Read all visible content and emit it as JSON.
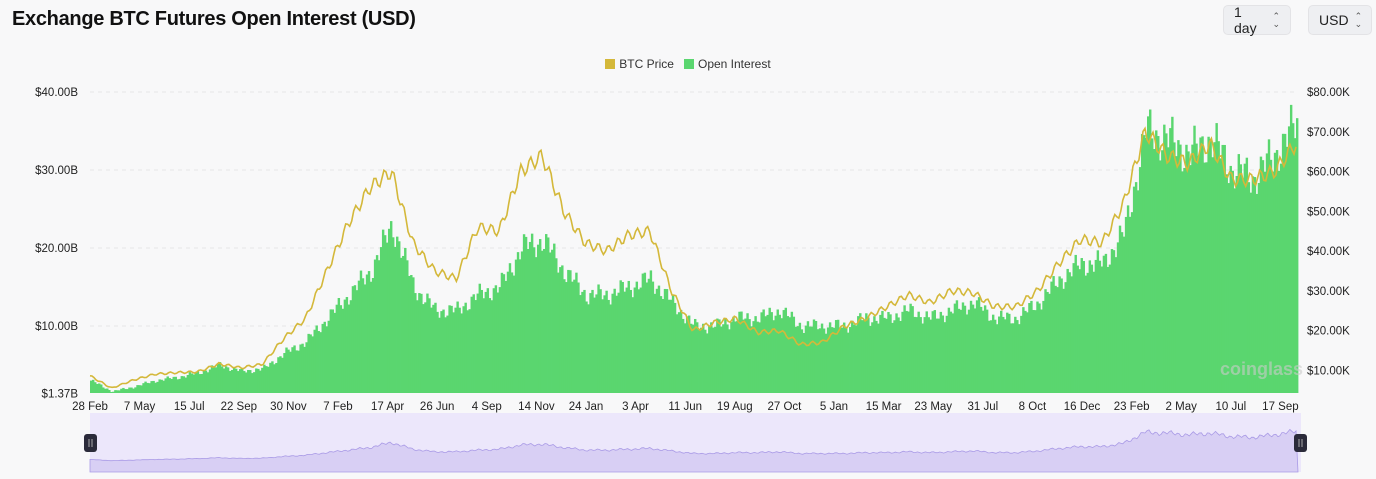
{
  "header": {
    "title": "Exchange BTC Futures Open Interest (USD)",
    "interval_label": "1 day",
    "currency_label": "USD"
  },
  "watermark": "coinglass",
  "colors": {
    "price": "#d4b83a",
    "oi": "#5ad66f",
    "navigator_bg": "#ece7fb",
    "navigator_fill": "#d8cff4",
    "navigator_line": "#a99ae6",
    "handle": "#2b2b3a"
  },
  "chart_data": {
    "type": "bar",
    "title": "Exchange BTC Futures Open Interest (USD)",
    "legend": [
      "BTC Price",
      "Open Interest"
    ],
    "legend_position": "top-center",
    "grid": true,
    "x_tick_labels": [
      "28 Feb",
      "7 May",
      "15 Jul",
      "22 Sep",
      "30 Nov",
      "7 Feb",
      "17 Apr",
      "26 Jun",
      "4 Sep",
      "14 Nov",
      "24 Jan",
      "3 Apr",
      "11 Jun",
      "19 Aug",
      "27 Oct",
      "5 Jan",
      "15 Mar",
      "23 May",
      "31 Jul",
      "8 Oct",
      "16 Dec",
      "23 Feb",
      "2 May",
      "10 Jul",
      "17 Sep"
    ],
    "y_left": {
      "tick_labels": [
        "$40.00B",
        "$30.00B",
        "$20.00B",
        "$10.00B",
        "$1.37B"
      ],
      "ticks": [
        40,
        30,
        20,
        10,
        1.37
      ],
      "range": [
        0,
        41.5
      ],
      "unit": "USD billions"
    },
    "y_right": {
      "tick_labels": [
        "$80.00K",
        "$70.00K",
        "$60.00K",
        "$50.00K",
        "$40.00K",
        "$30.00K",
        "$20.00K",
        "$10.00K"
      ],
      "ticks": [
        80,
        70,
        60,
        50,
        40,
        30,
        20,
        10
      ],
      "range": [
        0,
        82.5
      ],
      "unit": "USD thousands"
    },
    "x": [
      "2020-02",
      "2020-03",
      "2020-04",
      "2020-05",
      "2020-06",
      "2020-07",
      "2020-08",
      "2020-09",
      "2020-10",
      "2020-11",
      "2020-12",
      "2021-01",
      "2021-02",
      "2021-03",
      "2021-04",
      "2021-05",
      "2021-06",
      "2021-07",
      "2021-08",
      "2021-09",
      "2021-10",
      "2021-11",
      "2021-12",
      "2022-01",
      "2022-02",
      "2022-03",
      "2022-04",
      "2022-05",
      "2022-06",
      "2022-07",
      "2022-08",
      "2022-09",
      "2022-10",
      "2022-11",
      "2022-12",
      "2023-01",
      "2023-02",
      "2023-03",
      "2023-04",
      "2023-05",
      "2023-06",
      "2023-07",
      "2023-08",
      "2023-09",
      "2023-10",
      "2023-11",
      "2023-12",
      "2024-01",
      "2024-02",
      "2024-03",
      "2024-04",
      "2024-05",
      "2024-06",
      "2024-07",
      "2024-08",
      "2024-09",
      "2024-10"
    ],
    "series": [
      {
        "name": "Open Interest",
        "type": "bar",
        "axis": "left",
        "values": [
          3,
          1.6,
          2.2,
          3,
          3.4,
          4,
          5,
          4.2,
          4.5,
          6.5,
          8,
          11,
          14,
          17,
          23,
          15,
          12,
          12,
          14,
          15,
          20,
          21,
          17,
          14,
          14,
          15,
          16,
          13,
          10,
          10,
          11,
          11,
          12,
          10,
          10,
          10,
          11,
          11,
          12,
          11,
          12,
          13,
          11,
          11,
          13,
          16,
          18,
          18,
          22,
          35,
          34,
          32,
          34,
          30,
          29,
          32,
          36
        ]
      },
      {
        "name": "BTC Price",
        "type": "line",
        "axis": "right",
        "values": [
          8.6,
          5.5,
          7.5,
          9,
          9.4,
          9.6,
          11.6,
          10.6,
          11.5,
          18,
          23,
          35,
          47,
          56,
          60,
          42,
          35,
          33,
          46,
          45,
          60,
          64,
          50,
          42,
          40,
          44,
          45,
          30,
          20,
          22,
          23,
          19.5,
          20,
          16.5,
          17,
          21,
          23,
          26,
          29,
          27,
          30,
          29.5,
          26,
          26,
          30,
          37,
          43,
          42,
          52,
          70,
          64,
          62,
          67,
          58,
          58,
          60,
          67
        ]
      }
    ]
  }
}
